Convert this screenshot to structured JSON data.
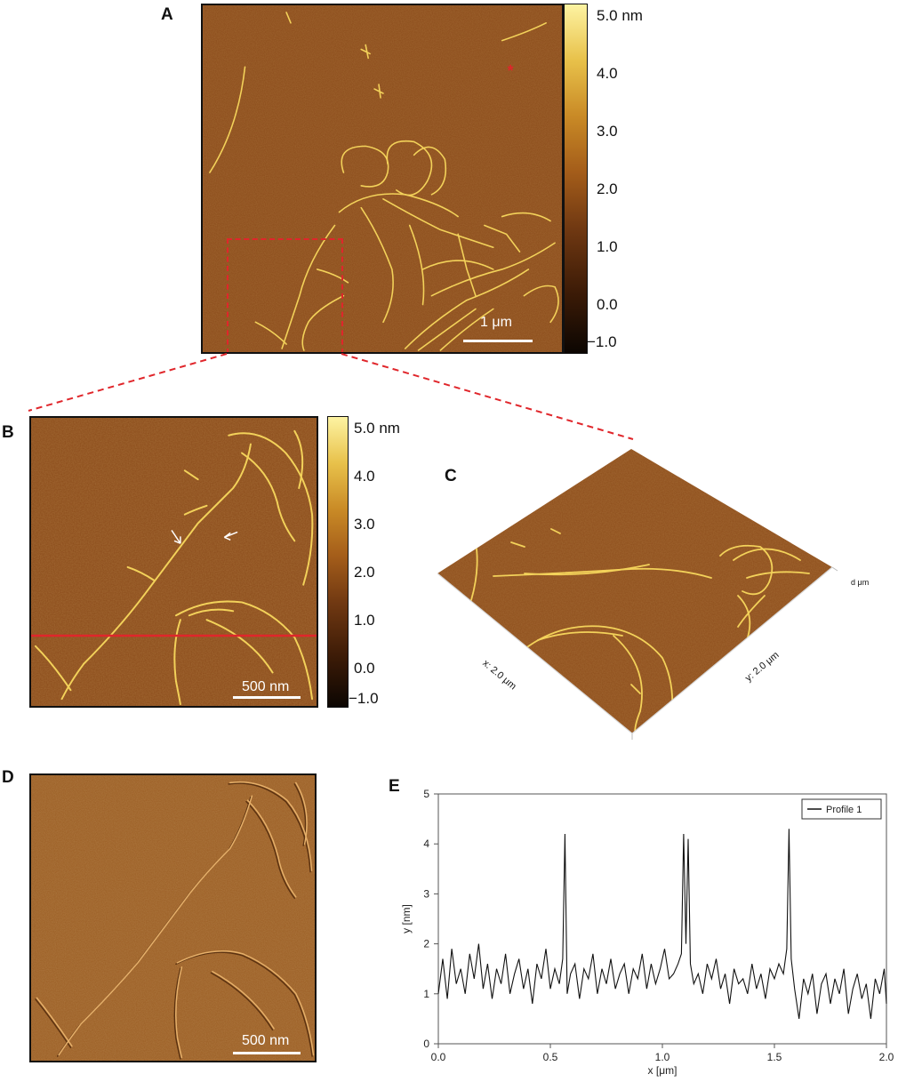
{
  "panels": {
    "A": {
      "letter": "A",
      "scalebar": "1 μm",
      "colorbar_ticks": [
        "5.0 nm",
        "4.0",
        "3.0",
        "2.0",
        "1.0",
        "0.0",
        "−1.0"
      ]
    },
    "B": {
      "letter": "B",
      "scalebar": "500 nm",
      "colorbar_ticks": [
        "5.0 nm",
        "4.0",
        "3.0",
        "2.0",
        "1.0",
        "0.0",
        "−1.0"
      ]
    },
    "C": {
      "letter": "C",
      "x_axis_label": "x: 2.0 μm",
      "y_axis_label": "y: 2.0 μm",
      "z_axis_label": "d μm"
    },
    "D": {
      "letter": "D",
      "scalebar": "500 nm"
    },
    "E": {
      "letter": "E"
    }
  },
  "colors": {
    "afm_background": "#8a4a19",
    "fibril": "#f3d25a",
    "selection_box": "#e0262b",
    "profile_line": "#e0262b",
    "amplitude_background": "#9a5c22"
  },
  "chart_data": {
    "type": "line",
    "title": "",
    "xlabel": "x [μm]",
    "ylabel": "y [nm]",
    "xlim": [
      0.0,
      2.0
    ],
    "ylim": [
      0,
      5
    ],
    "x_ticks": [
      "0.0",
      "0.5",
      "1.0",
      "1.5",
      "2.0"
    ],
    "y_ticks": [
      "0",
      "1",
      "2",
      "3",
      "4",
      "5"
    ],
    "grid": true,
    "legend": "top-right",
    "series": [
      {
        "name": "Profile 1",
        "x": [
          0.0,
          0.02,
          0.04,
          0.06,
          0.08,
          0.1,
          0.12,
          0.14,
          0.16,
          0.18,
          0.2,
          0.22,
          0.24,
          0.26,
          0.28,
          0.3,
          0.32,
          0.34,
          0.36,
          0.38,
          0.4,
          0.42,
          0.44,
          0.46,
          0.48,
          0.5,
          0.52,
          0.54,
          0.555,
          0.565,
          0.575,
          0.59,
          0.61,
          0.63,
          0.65,
          0.67,
          0.69,
          0.71,
          0.73,
          0.75,
          0.77,
          0.79,
          0.81,
          0.83,
          0.85,
          0.87,
          0.89,
          0.91,
          0.93,
          0.95,
          0.97,
          0.99,
          1.01,
          1.03,
          1.05,
          1.07,
          1.085,
          1.095,
          1.105,
          1.115,
          1.125,
          1.14,
          1.16,
          1.18,
          1.2,
          1.22,
          1.24,
          1.26,
          1.28,
          1.3,
          1.32,
          1.34,
          1.36,
          1.38,
          1.4,
          1.42,
          1.44,
          1.46,
          1.48,
          1.5,
          1.52,
          1.54,
          1.555,
          1.565,
          1.575,
          1.59,
          1.61,
          1.63,
          1.65,
          1.67,
          1.69,
          1.71,
          1.73,
          1.75,
          1.77,
          1.79,
          1.81,
          1.83,
          1.85,
          1.87,
          1.89,
          1.91,
          1.93,
          1.95,
          1.97,
          1.99,
          2.0
        ],
        "y": [
          1.0,
          1.7,
          0.9,
          1.9,
          1.2,
          1.5,
          1.0,
          1.8,
          1.3,
          2.0,
          1.1,
          1.6,
          0.9,
          1.5,
          1.2,
          1.8,
          1.0,
          1.4,
          1.7,
          1.1,
          1.5,
          0.8,
          1.6,
          1.3,
          1.9,
          1.1,
          1.5,
          1.2,
          1.7,
          4.2,
          1.0,
          1.4,
          1.6,
          0.9,
          1.5,
          1.3,
          1.8,
          1.0,
          1.5,
          1.2,
          1.7,
          1.1,
          1.4,
          1.6,
          1.0,
          1.5,
          1.3,
          1.8,
          1.1,
          1.6,
          1.2,
          1.5,
          1.9,
          1.3,
          1.4,
          1.6,
          1.8,
          4.2,
          2.0,
          4.1,
          1.6,
          1.2,
          1.4,
          1.0,
          1.6,
          1.3,
          1.7,
          1.1,
          1.4,
          0.8,
          1.5,
          1.2,
          1.3,
          1.0,
          1.6,
          1.1,
          1.4,
          0.9,
          1.5,
          1.3,
          1.6,
          1.4,
          1.9,
          4.3,
          1.7,
          1.1,
          0.5,
          1.3,
          1.0,
          1.4,
          0.6,
          1.2,
          1.4,
          0.8,
          1.3,
          1.0,
          1.5,
          0.6,
          1.1,
          1.4,
          0.9,
          1.2,
          0.5,
          1.3,
          1.0,
          1.5,
          0.8
        ]
      }
    ]
  }
}
